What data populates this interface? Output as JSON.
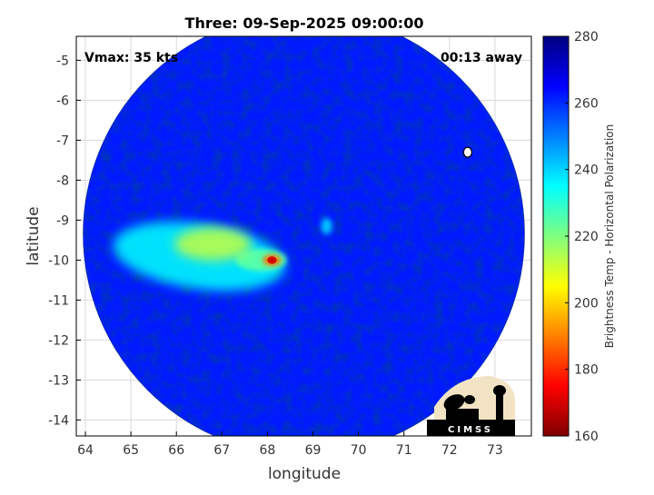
{
  "chart_data": {
    "type": "heatmap",
    "title": "Three: 09-Sep-2025 09:00:00",
    "xlabel": "longitude",
    "ylabel": "latitude",
    "xlim": [
      63.8,
      73.8
    ],
    "ylim": [
      -14.4,
      -4.4
    ],
    "xticks": [
      "64",
      "65",
      "66",
      "67",
      "68",
      "69",
      "70",
      "71",
      "72",
      "73"
    ],
    "yticks": [
      "-5",
      "-6",
      "-7",
      "-8",
      "-9",
      "-10",
      "-11",
      "-12",
      "-13",
      "-14"
    ],
    "grid": true,
    "annotation_left": "Vmax: 35 kts",
    "annotation_right": "00:13 away",
    "colorbar": {
      "label": "Brightness Temp - Horizontal Polarization",
      "range": [
        160,
        280
      ],
      "ticks": [
        "280",
        "260",
        "240",
        "220",
        "200",
        "180",
        "160"
      ],
      "colormap": "jet"
    },
    "swath": {
      "center": [
        68.8,
        -9.35
      ],
      "radius_deg": 4.85
    },
    "features": [
      {
        "kind": "background",
        "value": 262
      },
      {
        "kind": "cold-cloud-band",
        "lon": 66.5,
        "lat": -9.9,
        "value": 236
      },
      {
        "kind": "deep-convection-core",
        "lon": 68.1,
        "lat": -10.0,
        "value": 170
      },
      {
        "kind": "convection-patch",
        "lon": 66.8,
        "lat": -9.6,
        "value": 212
      },
      {
        "kind": "small-cell",
        "lon": 69.3,
        "lat": -9.15,
        "value": 242
      },
      {
        "kind": "storm-center-marker",
        "lon": 72.4,
        "lat": -7.3
      }
    ]
  },
  "logo": {
    "text": "CIMSS"
  },
  "colors": {
    "frame": "#000000",
    "grid": "#d9d9d9",
    "background": "#ffffff"
  }
}
